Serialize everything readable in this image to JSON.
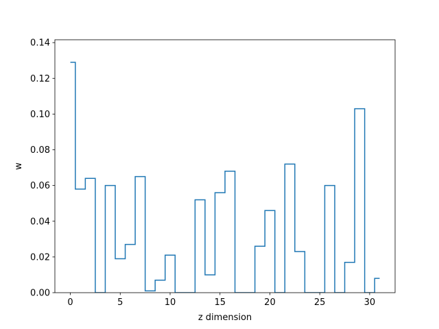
{
  "chart_data": {
    "type": "line",
    "drawstyle": "steps-mid",
    "title": "",
    "xlabel": "z dimension",
    "ylabel": "w",
    "xlim": [
      -1.55,
      32.55
    ],
    "ylim": [
      0,
      0.1416
    ],
    "xticks": [
      0,
      5,
      10,
      15,
      20,
      25,
      30
    ],
    "yticks": [
      0.0,
      0.02,
      0.04,
      0.06,
      0.08,
      0.1,
      0.12,
      0.14
    ],
    "ytick_labels": [
      "0.00",
      "0.02",
      "0.04",
      "0.06",
      "0.08",
      "0.10",
      "0.12",
      "0.14"
    ],
    "grid": false,
    "line_color": "#1f77b4",
    "x": [
      0,
      1,
      2,
      3,
      4,
      5,
      6,
      7,
      8,
      9,
      10,
      11,
      12,
      13,
      14,
      15,
      16,
      17,
      18,
      19,
      20,
      21,
      22,
      23,
      24,
      25,
      26,
      27,
      28,
      29,
      30,
      31
    ],
    "values": [
      0.129,
      0.058,
      0.064,
      0.0,
      0.06,
      0.019,
      0.027,
      0.065,
      0.001,
      0.007,
      0.021,
      0.0,
      0.0,
      0.052,
      0.01,
      0.056,
      0.068,
      0.0,
      0.0,
      0.026,
      0.046,
      0.0,
      0.072,
      0.023,
      0.0,
      0.0,
      0.06,
      0.0,
      0.017,
      0.103,
      0.0,
      0.008
    ]
  }
}
